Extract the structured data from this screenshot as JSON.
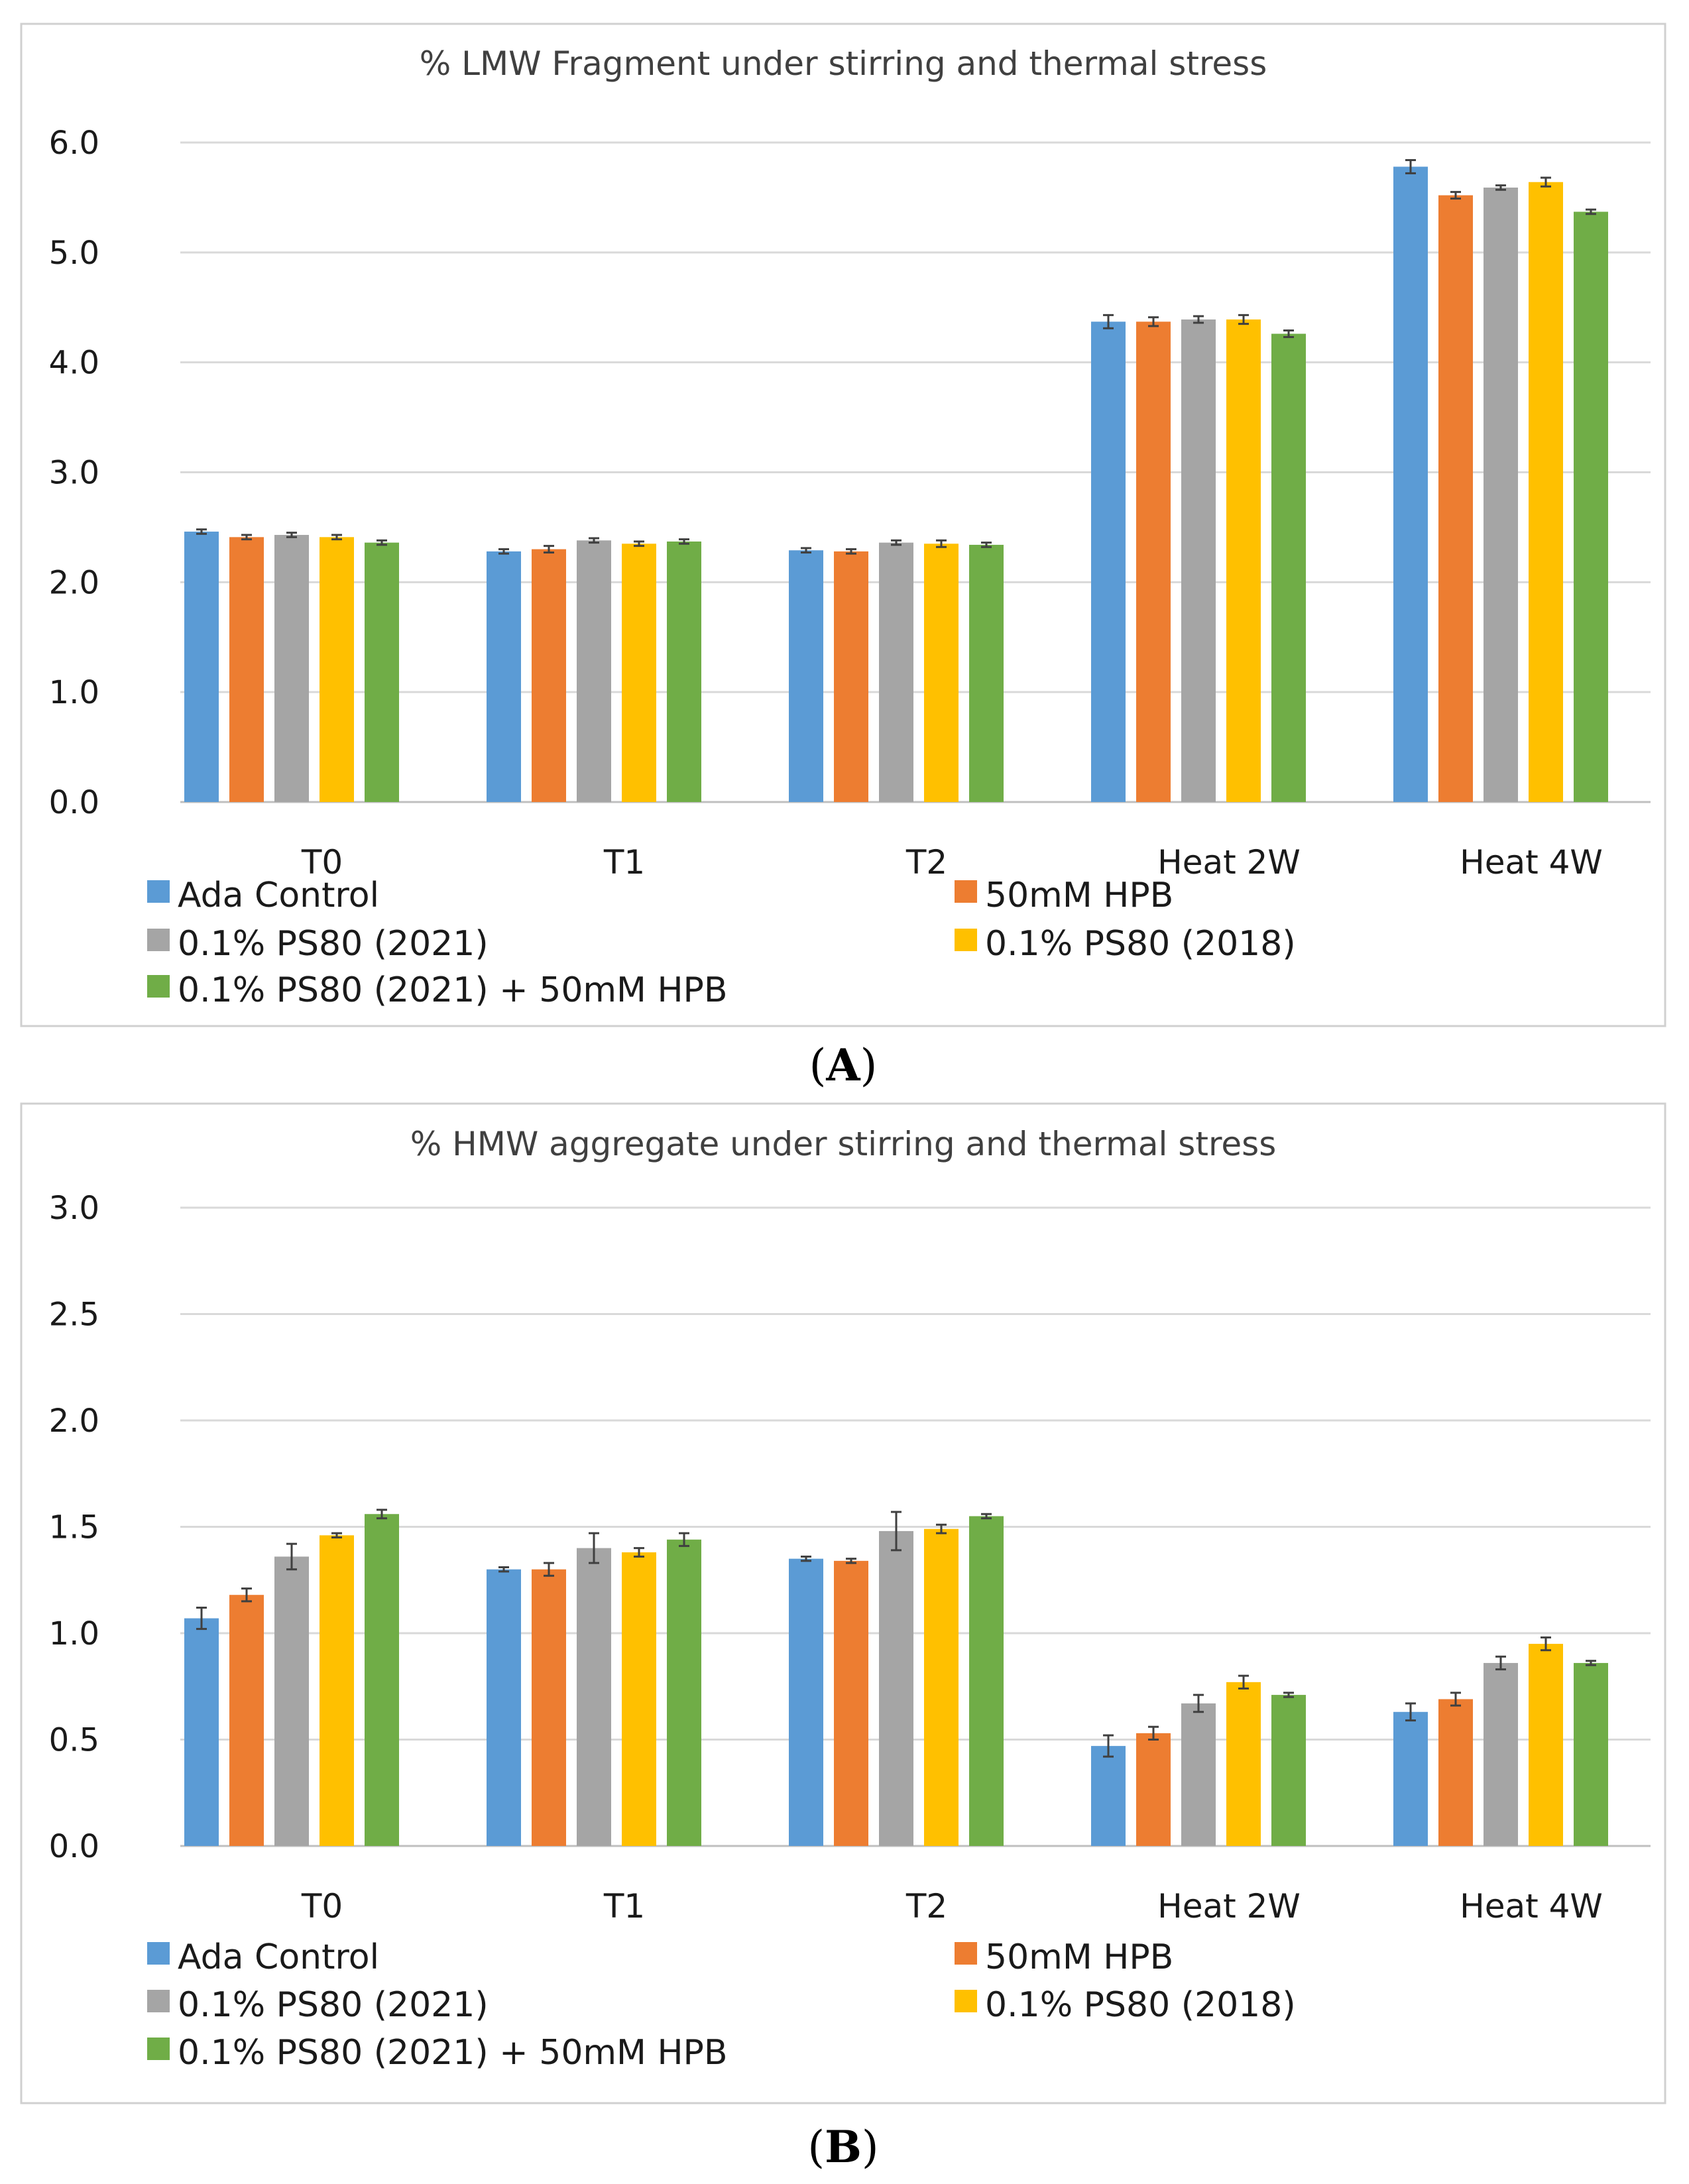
{
  "chart_data": [
    {
      "type": "bar",
      "panel_label": "A",
      "title": "% LMW Fragment under stirring and thermal stress",
      "xlabel": "",
      "ylabel": "",
      "ylim": [
        0,
        6
      ],
      "yticks": [
        "0.0",
        "1.0",
        "2.0",
        "3.0",
        "4.0",
        "5.0",
        "6.0"
      ],
      "categories": [
        "T0",
        "T1",
        "T2",
        "Heat 2W",
        "Heat 4W"
      ],
      "series": [
        {
          "name": "Ada Control",
          "color": "#5b9bd5",
          "values": [
            2.46,
            2.28,
            2.29,
            4.37,
            5.78
          ],
          "errors": [
            0.02,
            0.02,
            0.02,
            0.06,
            0.06
          ]
        },
        {
          "name": "50mM HPB",
          "color": "#ed7d31",
          "values": [
            2.41,
            2.3,
            2.28,
            4.37,
            5.52
          ],
          "errors": [
            0.02,
            0.03,
            0.02,
            0.04,
            0.03
          ]
        },
        {
          "name": "0.1% PS80 (2021)",
          "color": "#a5a5a5",
          "values": [
            2.43,
            2.38,
            2.36,
            4.39,
            5.59
          ],
          "errors": [
            0.02,
            0.02,
            0.02,
            0.03,
            0.02
          ]
        },
        {
          "name": "0.1% PS80 (2018)",
          "color": "#ffc000",
          "values": [
            2.41,
            2.35,
            2.35,
            4.39,
            5.64
          ],
          "errors": [
            0.02,
            0.02,
            0.03,
            0.04,
            0.04
          ]
        },
        {
          "name": "0.1% PS80 (2021) + 50mM HPB",
          "color": "#70ad47",
          "values": [
            2.36,
            2.37,
            2.34,
            4.26,
            5.37
          ],
          "errors": [
            0.02,
            0.02,
            0.02,
            0.03,
            0.02
          ]
        }
      ],
      "grid": true,
      "legend": "bottom"
    },
    {
      "type": "bar",
      "panel_label": "B",
      "title": "% HMW aggregate under stirring and thermal stress",
      "xlabel": "",
      "ylabel": "",
      "ylim": [
        0,
        3
      ],
      "yticks": [
        "0.0",
        "0.5",
        "1.0",
        "1.5",
        "2.0",
        "2.5",
        "3.0"
      ],
      "categories": [
        "T0",
        "T1",
        "T2",
        "Heat 2W",
        "Heat 4W"
      ],
      "series": [
        {
          "name": "Ada Control",
          "color": "#5b9bd5",
          "values": [
            1.07,
            1.3,
            1.35,
            0.47,
            0.63
          ],
          "errors": [
            0.05,
            0.01,
            0.01,
            0.05,
            0.04
          ]
        },
        {
          "name": "50mM HPB",
          "color": "#ed7d31",
          "values": [
            1.18,
            1.3,
            1.34,
            0.53,
            0.69
          ],
          "errors": [
            0.03,
            0.03,
            0.01,
            0.03,
            0.03
          ]
        },
        {
          "name": "0.1% PS80 (2021)",
          "color": "#a5a5a5",
          "values": [
            1.36,
            1.4,
            1.48,
            0.67,
            0.86
          ],
          "errors": [
            0.06,
            0.07,
            0.09,
            0.04,
            0.03
          ]
        },
        {
          "name": "0.1% PS80 (2018)",
          "color": "#ffc000",
          "values": [
            1.46,
            1.38,
            1.49,
            0.77,
            0.95
          ],
          "errors": [
            0.01,
            0.02,
            0.02,
            0.03,
            0.03
          ]
        },
        {
          "name": "0.1% PS80 (2021) + 50mM HPB",
          "color": "#70ad47",
          "values": [
            1.56,
            1.44,
            1.55,
            0.71,
            0.86
          ],
          "errors": [
            0.02,
            0.03,
            0.01,
            0.01,
            0.01
          ]
        }
      ],
      "grid": true,
      "legend": "bottom"
    }
  ]
}
